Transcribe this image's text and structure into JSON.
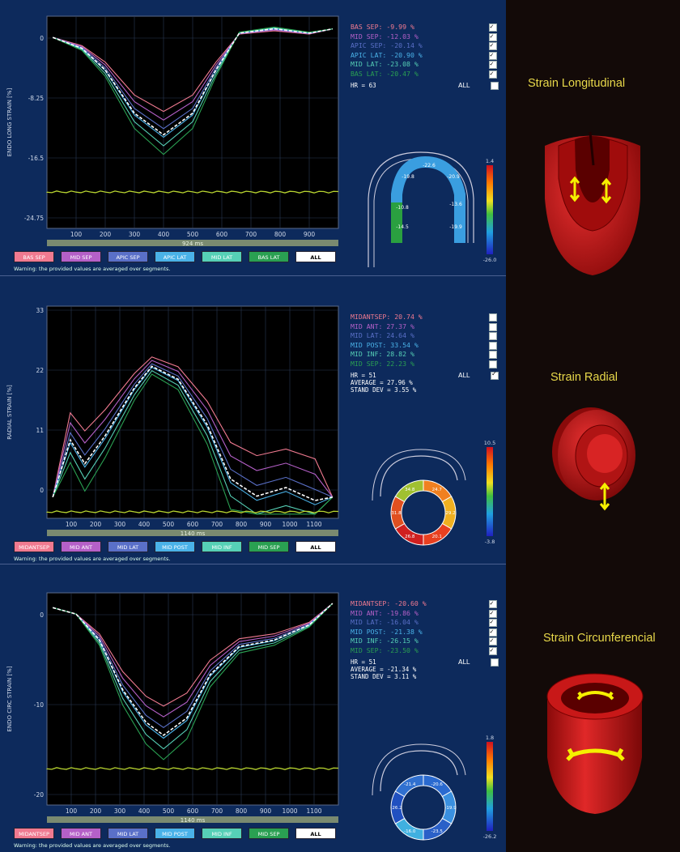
{
  "panels": [
    {
      "ylabel": "ENDO LONG STRAIN [%]",
      "yticks": [
        "0",
        "-8.25",
        "-16.5",
        "-24.75"
      ],
      "xticks": [
        "100",
        "200",
        "300",
        "400",
        "500",
        "600",
        "700",
        "800",
        "900"
      ],
      "duration": "924 ms",
      "legend": [
        {
          "text": "BAS SEP: -9.99  %",
          "color": "#f07a90",
          "checked": true
        },
        {
          "text": "MID SEP: -12.03  %",
          "color": "#b560c8",
          "checked": true
        },
        {
          "text": "APIC SEP: -20.14  %",
          "color": "#5a70c8",
          "checked": true
        },
        {
          "text": "APIC LAT: -20.90  %",
          "color": "#4ab2e8",
          "checked": true
        },
        {
          "text": "MID LAT: -23.08  %",
          "color": "#56d0b6",
          "checked": true
        },
        {
          "text": "BAS LAT: -20.47  %",
          "color": "#2aa052",
          "checked": true
        }
      ],
      "stats": [
        "HR = 63"
      ],
      "all_label": "ALL",
      "all_checked": false,
      "buttons": [
        {
          "label": "BAS SEP",
          "color": "#f07a90"
        },
        {
          "label": "MID SEP",
          "color": "#b560c8"
        },
        {
          "label": "APIC SEP",
          "color": "#5a70c8"
        },
        {
          "label": "APIC LAT",
          "color": "#4ab2e8"
        },
        {
          "label": "MID LAT",
          "color": "#56d0b6"
        },
        {
          "label": "BAS LAT",
          "color": "#2aa052"
        },
        {
          "label": "ALL",
          "color": "#ffffff"
        }
      ],
      "warning": "Warning: the provided values are averaged over segments.",
      "scale": {
        "top": "1.4",
        "bottom": "-26.0"
      },
      "map_values": [
        "-10.8",
        "-19.8",
        "-22.6",
        "-20.9",
        "-13.6",
        "-19.9",
        "-14.5",
        "-25.6"
      ]
    },
    {
      "ylabel": "RADIAL STRAIN [%]",
      "yticks": [
        "33",
        "22",
        "11",
        "0"
      ],
      "xticks": [
        "100",
        "200",
        "300",
        "400",
        "500",
        "600",
        "700",
        "800",
        "900",
        "1000",
        "1100"
      ],
      "duration": "1140 ms",
      "legend": [
        {
          "text": "MIDANTSEP: 20.74  %",
          "color": "#f07a90",
          "checked": false
        },
        {
          "text": "MID ANT: 27.37  %",
          "color": "#b560c8",
          "checked": false
        },
        {
          "text": "MID LAT: 24.64  %",
          "color": "#5a70c8",
          "checked": false
        },
        {
          "text": "MID POST: 33.54  %",
          "color": "#4ab2e8",
          "checked": false
        },
        {
          "text": "MID INF: 28.82  %",
          "color": "#56d0b6",
          "checked": false
        },
        {
          "text": "MID SEP: 22.23  %",
          "color": "#2aa052",
          "checked": false
        }
      ],
      "stats": [
        "HR = 51",
        "AVERAGE = 27.96 %",
        "STAND DEV = 3.55 %"
      ],
      "all_label": "ALL",
      "all_checked": true,
      "buttons": [
        {
          "label": "MIDANTSEP",
          "color": "#f07a90"
        },
        {
          "label": "MID ANT",
          "color": "#b560c8"
        },
        {
          "label": "MID LAT",
          "color": "#5a70c8"
        },
        {
          "label": "MID POST",
          "color": "#4ab2e8"
        },
        {
          "label": "MID INF",
          "color": "#56d0b6"
        },
        {
          "label": "MID SEP",
          "color": "#2aa052"
        },
        {
          "label": "ALL",
          "color": "#ffffff"
        }
      ],
      "warning": "Warning: the provided values are averaged over segments.",
      "scale": {
        "top": "10.5",
        "bottom": "-3.8"
      },
      "map_values": [
        "24.7",
        "29.2",
        "20.1",
        "26.8",
        "31.8",
        "34.8"
      ]
    },
    {
      "ylabel": "ENDO CIRC STRAIN [%]",
      "yticks": [
        "0",
        "-10",
        "-20"
      ],
      "xticks": [
        "100",
        "200",
        "300",
        "400",
        "500",
        "600",
        "700",
        "800",
        "900",
        "1000",
        "1100"
      ],
      "duration": "1140 ms",
      "legend": [
        {
          "text": "MIDANTSEP: -20.60  %",
          "color": "#f07a90",
          "checked": true
        },
        {
          "text": "MID ANT: -19.86  %",
          "color": "#b560c8",
          "checked": true
        },
        {
          "text": "MID LAT: -16.04  %",
          "color": "#5a70c8",
          "checked": true
        },
        {
          "text": "MID POST: -21.38  %",
          "color": "#4ab2e8",
          "checked": true
        },
        {
          "text": "MID INF: -26.15  %",
          "color": "#56d0b6",
          "checked": true
        },
        {
          "text": "MID SEP: -23.50  %",
          "color": "#2aa052",
          "checked": true
        }
      ],
      "stats": [
        "HR = 51",
        "AVERAGE = -21.34 %",
        "STAND DEV = 3.11 %"
      ],
      "all_label": "ALL",
      "all_checked": false,
      "buttons": [
        {
          "label": "MIDANTSEP",
          "color": "#f07a90"
        },
        {
          "label": "MID ANT",
          "color": "#b560c8"
        },
        {
          "label": "MID LAT",
          "color": "#5a70c8"
        },
        {
          "label": "MID POST",
          "color": "#4ab2e8"
        },
        {
          "label": "MID INF",
          "color": "#56d0b6"
        },
        {
          "label": "MID SEP",
          "color": "#2aa052"
        },
        {
          "label": "ALL",
          "color": "#ffffff"
        }
      ],
      "warning": "Warning: the provided values are averaged over segments.",
      "scale": {
        "top": "1.8",
        "bottom": "-26.2"
      },
      "map_values": [
        "-20.6",
        "-19.9",
        "-23.5",
        "-16.0",
        "-26.2",
        "-21.4"
      ]
    }
  ],
  "heart_labels": [
    "Strain Longitudinal",
    "Strain Radial",
    "Strain Circunferencial"
  ],
  "colors": {
    "panel_bg": "#0d2a5c",
    "plot_bg": "#000000",
    "average_curve": "#ffffff",
    "ecg": "#b8d430",
    "label": "#e8d84a",
    "heart": "#c81818"
  }
}
